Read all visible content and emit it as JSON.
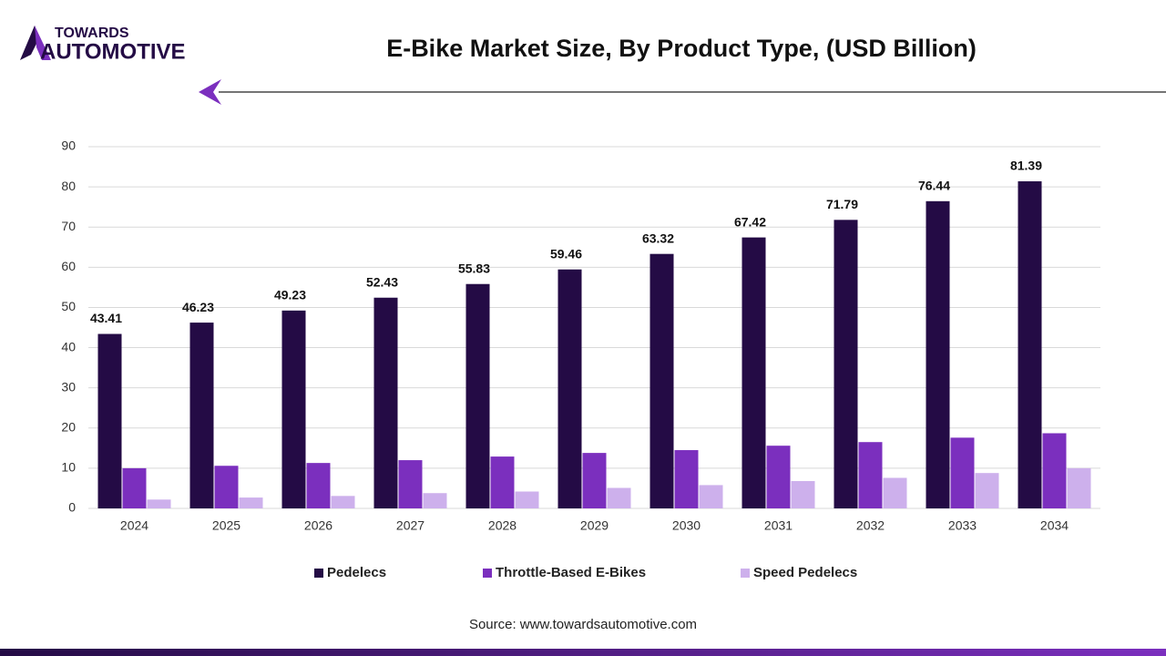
{
  "logo": {
    "line1": "TOWARDS",
    "line2": "AUTOMOTIVE"
  },
  "chart_data": {
    "type": "bar",
    "title": "E-Bike Market Size, By Product Type, (USD Billion)",
    "source": "Source: www.towardsautomotive.com",
    "categories": [
      "2024",
      "2025",
      "2026",
      "2027",
      "2028",
      "2029",
      "2030",
      "2031",
      "2032",
      "2033",
      "2034"
    ],
    "series": [
      {
        "name": "Pedelecs",
        "color": "#240b45",
        "values": [
          43.41,
          46.23,
          49.23,
          52.43,
          55.83,
          59.46,
          63.32,
          67.42,
          71.79,
          76.44,
          81.39
        ],
        "show_labels": true
      },
      {
        "name": "Throttle-Based E-Bikes",
        "color": "#7b2fbe",
        "values": [
          10,
          10.6,
          11.3,
          12,
          12.9,
          13.8,
          14.5,
          15.6,
          16.5,
          17.6,
          18.7
        ]
      },
      {
        "name": "Speed Pedelecs",
        "color": "#cdb0ec",
        "values": [
          2.2,
          2.7,
          3.1,
          3.8,
          4.2,
          5.1,
          5.8,
          6.8,
          7.6,
          8.8,
          10
        ]
      }
    ],
    "ylim": [
      0,
      90
    ],
    "yticks": [
      0,
      10,
      20,
      30,
      40,
      50,
      60,
      70,
      80,
      90
    ],
    "grid": true,
    "legend": "bottom"
  }
}
